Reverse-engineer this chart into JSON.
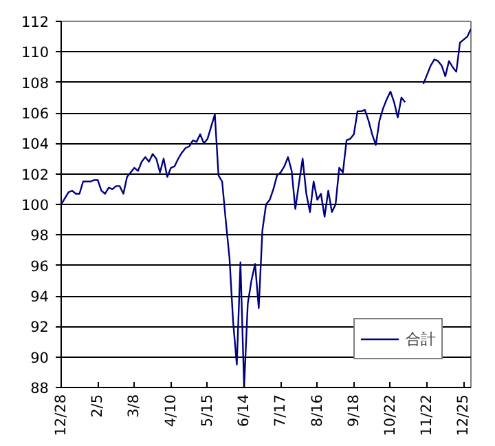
{
  "chart_data": {
    "type": "line",
    "categories": [
      "12/28",
      null,
      null,
      null,
      null,
      null,
      null,
      null,
      null,
      null,
      "2/5",
      null,
      null,
      null,
      null,
      null,
      null,
      null,
      null,
      null,
      "3/8",
      null,
      null,
      null,
      null,
      null,
      null,
      null,
      null,
      null,
      "4/10",
      null,
      null,
      null,
      null,
      null,
      null,
      null,
      null,
      null,
      "5/15",
      null,
      null,
      null,
      null,
      null,
      null,
      null,
      null,
      null,
      "6/14",
      null,
      null,
      null,
      null,
      null,
      null,
      null,
      null,
      null,
      "7/17",
      null,
      null,
      null,
      null,
      null,
      null,
      null,
      null,
      null,
      "8/16",
      null,
      null,
      null,
      null,
      null,
      null,
      null,
      null,
      null,
      "9/18",
      null,
      null,
      null,
      null,
      null,
      null,
      null,
      null,
      null,
      "10/22",
      null,
      null,
      null,
      null,
      null,
      null,
      null,
      null,
      null,
      "11/22",
      null,
      null,
      null,
      null,
      null,
      null,
      null,
      null,
      null,
      "12/25",
      null,
      null
    ],
    "series": [
      {
        "name": "合計",
        "color": "#000080",
        "values": [
          100.0,
          100.4,
          100.8,
          100.9,
          100.7,
          100.7,
          101.5,
          101.5,
          101.5,
          101.6,
          101.6,
          100.9,
          100.7,
          101.1,
          101.0,
          101.2,
          101.2,
          100.7,
          101.8,
          102.1,
          102.4,
          102.2,
          102.8,
          103.1,
          102.8,
          103.3,
          103.0,
          102.1,
          103.0,
          101.8,
          102.4,
          102.5,
          103.0,
          103.4,
          103.7,
          103.8,
          104.2,
          104.1,
          104.6,
          104.0,
          104.3,
          105.1,
          105.9,
          101.9,
          101.5,
          98.9,
          96.5,
          92.3,
          89.5,
          96.2,
          88.0,
          93.5,
          95.0,
          96.1,
          93.2,
          98.3,
          100.0,
          100.3,
          101.0,
          101.9,
          102.1,
          102.5,
          103.1,
          102.2,
          99.7,
          101.4,
          103.0,
          100.7,
          99.5,
          101.5,
          100.3,
          100.7,
          99.2,
          100.9,
          99.5,
          100.0,
          102.4,
          102.1,
          104.2,
          104.3,
          104.6,
          106.1,
          106.1,
          106.2,
          105.5,
          104.6,
          103.9,
          105.5,
          106.3,
          106.9,
          107.4,
          106.7,
          105.7,
          107.0,
          106.7,
          null,
          null,
          null,
          null,
          107.9,
          108.5,
          109.1,
          109.5,
          109.4,
          109.1,
          108.4,
          109.4,
          109.0,
          108.7,
          110.6,
          110.8,
          111.0,
          111.5
        ]
      }
    ],
    "ylim": [
      88,
      112
    ],
    "yticks": [
      88,
      90,
      92,
      94,
      96,
      98,
      100,
      102,
      104,
      106,
      108,
      110,
      112
    ],
    "grid": "y",
    "legend": "bottom right",
    "marker": "none",
    "line_style": "solid"
  }
}
